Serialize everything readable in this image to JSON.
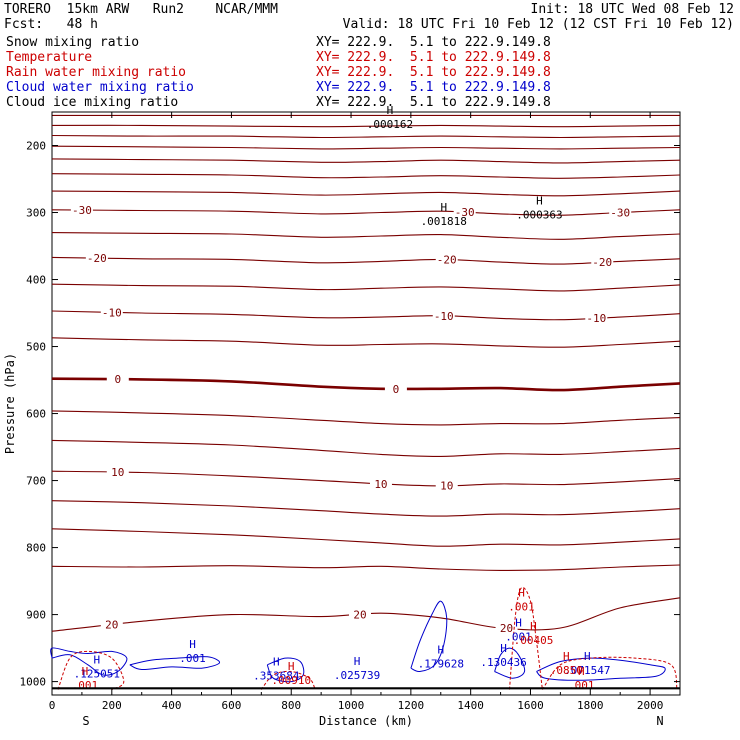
{
  "header": {
    "model": "TORERO  15km ARW   Run2    NCAR/MMM",
    "init": "Init: 18 UTC Wed 08 Feb 12",
    "fcst": "Fcst:   48 h",
    "valid": "Valid: 18 UTC Fri 10 Feb 12 (12 CST Fri 10 Feb 12)"
  },
  "fields": [
    {
      "name": "Snow mixing ratio",
      "xy": "XY= 222.9.  5.1 to 222.9.149.8",
      "color": "#000000"
    },
    {
      "name": "Temperature",
      "xy": "XY= 222.9.  5.1 to 222.9.149.8",
      "color": "#cc0000"
    },
    {
      "name": "Rain water mixing ratio",
      "xy": "XY= 222.9.  5.1 to 222.9.149.8",
      "color": "#cc0000"
    },
    {
      "name": "Cloud water mixing ratio",
      "xy": "XY= 222.9.  5.1 to 222.9.149.8",
      "color": "#0000cc"
    },
    {
      "name": "Cloud ice mixing ratio",
      "xy": "XY= 222.9.  5.1 to 222.9.149.8",
      "color": "#000000"
    }
  ],
  "chart_data": {
    "type": "line",
    "xlabel": "Distance (km)",
    "ylabel": "Pressure (hPa)",
    "xlim": [
      0,
      2100
    ],
    "ylim": [
      150,
      1020
    ],
    "x_ticks": [
      0,
      200,
      400,
      600,
      800,
      1000,
      1200,
      1400,
      1600,
      1800,
      2000
    ],
    "y_ticks": [
      200,
      300,
      400,
      500,
      600,
      700,
      800,
      900,
      1000
    ],
    "x_end_labels": {
      "left": "S",
      "right": "N"
    },
    "isotherm_x": [
      0,
      300,
      600,
      900,
      1100,
      1300,
      1500,
      1700,
      1900,
      2100
    ],
    "isotherms": [
      {
        "p": [
          155,
          155,
          155,
          155,
          155,
          155,
          155,
          155,
          155,
          155
        ]
      },
      {
        "p": [
          170,
          170,
          171,
          172,
          171,
          170,
          171,
          172,
          171,
          170
        ]
      },
      {
        "p": [
          185,
          186,
          186,
          188,
          187,
          186,
          187,
          188,
          187,
          186
        ]
      },
      {
        "p": [
          201,
          202,
          203,
          205,
          204,
          203,
          204,
          205,
          204,
          203
        ]
      },
      {
        "p": [
          220,
          221,
          222,
          225,
          224,
          222,
          224,
          226,
          224,
          222
        ]
      },
      {
        "p": [
          242,
          243,
          244,
          248,
          247,
          245,
          247,
          249,
          247,
          244
        ]
      },
      {
        "p": [
          268,
          269,
          270,
          274,
          272,
          270,
          273,
          275,
          272,
          268
        ]
      },
      {
        "p": [
          296,
          297,
          298,
          302,
          300,
          298,
          302,
          304,
          300,
          296
        ],
        "label": "-30",
        "labels_at": [
          100,
          1380,
          1900
        ]
      },
      {
        "p": [
          330,
          331,
          332,
          337,
          335,
          333,
          337,
          340,
          336,
          332
        ]
      },
      {
        "p": [
          367,
          369,
          370,
          375,
          373,
          370,
          374,
          377,
          373,
          369
        ],
        "label": "-20",
        "labels_at": [
          150,
          1320,
          1840
        ]
      },
      {
        "p": [
          407,
          409,
          410,
          415,
          413,
          411,
          414,
          417,
          413,
          408
        ]
      },
      {
        "p": [
          447,
          450,
          452,
          457,
          456,
          454,
          458,
          460,
          456,
          451
        ],
        "label": "-10",
        "labels_at": [
          200,
          1310,
          1820
        ]
      },
      {
        "p": [
          487,
          490,
          492,
          498,
          497,
          496,
          499,
          501,
          497,
          492
        ]
      },
      {
        "p": [
          548,
          549,
          552,
          560,
          563,
          563,
          562,
          565,
          560,
          555
        ],
        "label": "0",
        "labels_at": [
          220,
          1150
        ],
        "bold": true
      },
      {
        "p": [
          596,
          599,
          603,
          610,
          615,
          617,
          615,
          615,
          610,
          606
        ]
      },
      {
        "p": [
          640,
          643,
          647,
          655,
          661,
          664,
          660,
          661,
          657,
          652
        ]
      },
      {
        "p": [
          686,
          688,
          693,
          700,
          705,
          708,
          705,
          706,
          702,
          697
        ],
        "label": "10",
        "labels_at": [
          220,
          1100,
          1320
        ]
      },
      {
        "p": [
          730,
          733,
          738,
          745,
          750,
          753,
          750,
          751,
          747,
          742
        ]
      },
      {
        "p": [
          772,
          776,
          781,
          788,
          793,
          798,
          795,
          796,
          792,
          787
        ]
      },
      {
        "p": [
          828,
          829,
          827,
          830,
          828,
          832,
          834,
          833,
          829,
          826
        ]
      },
      {
        "p": [
          925,
          910,
          900,
          903,
          898,
          905,
          920,
          920,
          890,
          875
        ],
        "label": "20",
        "labels_at": [
          200,
          1030,
          1520
        ]
      }
    ],
    "cloud_water_maxima": [
      {
        "x": 150,
        "p": 985,
        "label": ".125051"
      },
      {
        "x": 750,
        "p": 988,
        "label": ".353684"
      },
      {
        "x": 1020,
        "p": 987,
        "label": ".025739"
      },
      {
        "x": 1300,
        "p": 970,
        "label": ".179628"
      },
      {
        "x": 1510,
        "p": 968,
        "label": ".130436"
      },
      {
        "x": 1560,
        "p": 930,
        "label": ".001"
      },
      {
        "x": 1790,
        "p": 980,
        "label": ".071547"
      },
      {
        "x": 470,
        "p": 962,
        "label": ".001"
      }
    ],
    "rain_maxima": [
      {
        "x": 800,
        "p": 995,
        "label": ".00910"
      },
      {
        "x": 1610,
        "p": 935,
        "label": ".00405"
      },
      {
        "x": 1720,
        "p": 980,
        "label": ".0850"
      },
      {
        "x": 1570,
        "p": 885,
        "label": ".001"
      },
      {
        "x": 110,
        "p": 1002,
        "label": ".001"
      },
      {
        "x": 1770,
        "p": 1002,
        "label": ".001"
      }
    ],
    "ice_maxima": [
      {
        "x": 1310,
        "p": 310,
        "label": ".001818"
      },
      {
        "x": 1630,
        "p": 300,
        "label": ".000363"
      },
      {
        "x": 1130,
        "p": 165,
        "label": ".000162"
      }
    ]
  }
}
